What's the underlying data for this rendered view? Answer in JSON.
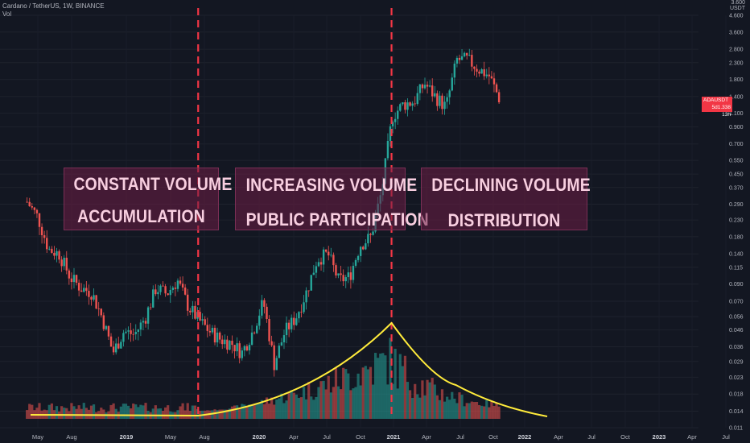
{
  "header": {
    "symbol_line": "Cardano / TetherUS, 1W, BINANCE",
    "indicator": "Vol"
  },
  "price_scale": {
    "unit_top": "3.600",
    "unit_label": "USDT",
    "ticks": [
      "4.600",
      "3.600",
      "2.800",
      "2.300",
      "1.800",
      "1.400",
      "1.100",
      "0.900",
      "0.700",
      "0.550",
      "0.450",
      "0.370",
      "0.290",
      "0.230",
      "0.180",
      "0.140",
      "0.115",
      "0.090",
      "0.070",
      "0.056",
      "0.046",
      "0.036",
      "0.029",
      "0.023",
      "0.018",
      "0.014",
      "0.011"
    ],
    "current_price": {
      "symbol": "ADAUSDT",
      "price": "1.338",
      "countdown": "5d 13h"
    }
  },
  "time_axis": [
    "May",
    "Aug",
    "2019",
    "May",
    "Aug",
    "2020",
    "Apr",
    "Jul",
    "Oct",
    "2021",
    "Apr",
    "Jul",
    "Oct",
    "2022",
    "Apr",
    "Jul",
    "Oct",
    "2023",
    "Apr",
    "Jul"
  ],
  "annotations": [
    {
      "line1": "CONSTANT VOLUME",
      "line2": "ACCUMULATION"
    },
    {
      "line1": "INCREASING VOLUME",
      "line2": "PUBLIC PARTICIPATION"
    },
    {
      "line1": "DECLINING VOLUME",
      "line2": "DISTRIBUTION"
    }
  ],
  "colors": {
    "background": "#131722",
    "up_candle": "#26a69a",
    "down_candle": "#ef5350",
    "phase_divider": "#f23645",
    "volume_curve": "#ffeb3b",
    "annotation_fill": "#6e1e46"
  },
  "chart_data": {
    "type": "candlestick-with-volume",
    "title": "Cardano / TetherUS, 1W, BINANCE",
    "y_scale": "log",
    "ylim": [
      0.011,
      5.0
    ],
    "x_range": [
      "2018-05",
      "2023-07"
    ],
    "price_path": [
      {
        "date": "2018-04",
        "price": 0.3
      },
      {
        "date": "2018-05",
        "price": 0.24
      },
      {
        "date": "2018-06",
        "price": 0.15
      },
      {
        "date": "2018-07",
        "price": 0.14
      },
      {
        "date": "2018-08",
        "price": 0.1
      },
      {
        "date": "2018-09",
        "price": 0.085
      },
      {
        "date": "2018-10",
        "price": 0.08
      },
      {
        "date": "2018-11",
        "price": 0.055
      },
      {
        "date": "2018-12",
        "price": 0.033
      },
      {
        "date": "2019-01",
        "price": 0.045
      },
      {
        "date": "2019-02",
        "price": 0.043
      },
      {
        "date": "2019-03",
        "price": 0.055
      },
      {
        "date": "2019-04",
        "price": 0.085
      },
      {
        "date": "2019-05",
        "price": 0.078
      },
      {
        "date": "2019-06",
        "price": 0.095
      },
      {
        "date": "2019-07",
        "price": 0.065
      },
      {
        "date": "2019-08",
        "price": 0.053
      },
      {
        "date": "2019-09",
        "price": 0.045
      },
      {
        "date": "2019-10",
        "price": 0.04
      },
      {
        "date": "2019-11",
        "price": 0.038
      },
      {
        "date": "2019-12",
        "price": 0.033
      },
      {
        "date": "2020-01",
        "price": 0.045
      },
      {
        "date": "2020-02",
        "price": 0.07
      },
      {
        "date": "2020-03",
        "price": 0.028
      },
      {
        "date": "2020-04",
        "price": 0.045
      },
      {
        "date": "2020-05",
        "price": 0.055
      },
      {
        "date": "2020-06",
        "price": 0.08
      },
      {
        "date": "2020-07",
        "price": 0.13
      },
      {
        "date": "2020-08",
        "price": 0.14
      },
      {
        "date": "2020-09",
        "price": 0.095
      },
      {
        "date": "2020-10",
        "price": 0.1
      },
      {
        "date": "2020-11",
        "price": 0.16
      },
      {
        "date": "2020-12",
        "price": 0.18
      },
      {
        "date": "2021-01",
        "price": 0.35
      },
      {
        "date": "2021-02",
        "price": 1.05
      },
      {
        "date": "2021-03",
        "price": 1.25
      },
      {
        "date": "2021-04",
        "price": 1.3
      },
      {
        "date": "2021-05",
        "price": 1.7
      },
      {
        "date": "2021-06",
        "price": 1.4
      },
      {
        "date": "2021-07",
        "price": 1.2
      },
      {
        "date": "2021-08",
        "price": 2.4
      },
      {
        "date": "2021-09",
        "price": 2.4
      },
      {
        "date": "2021-10",
        "price": 2.1
      },
      {
        "date": "2021-11",
        "price": 1.9
      },
      {
        "date": "2021-12",
        "price": 1.338
      }
    ],
    "volume_trend": [
      {
        "phase": "CONSTANT VOLUME",
        "trend": "flat"
      },
      {
        "phase": "INCREASING VOLUME",
        "trend": "rising",
        "peak": "2021-02"
      },
      {
        "phase": "DECLINING VOLUME",
        "trend": "falling"
      }
    ],
    "phase_dividers": [
      "2019-08",
      "2021-02"
    ]
  }
}
